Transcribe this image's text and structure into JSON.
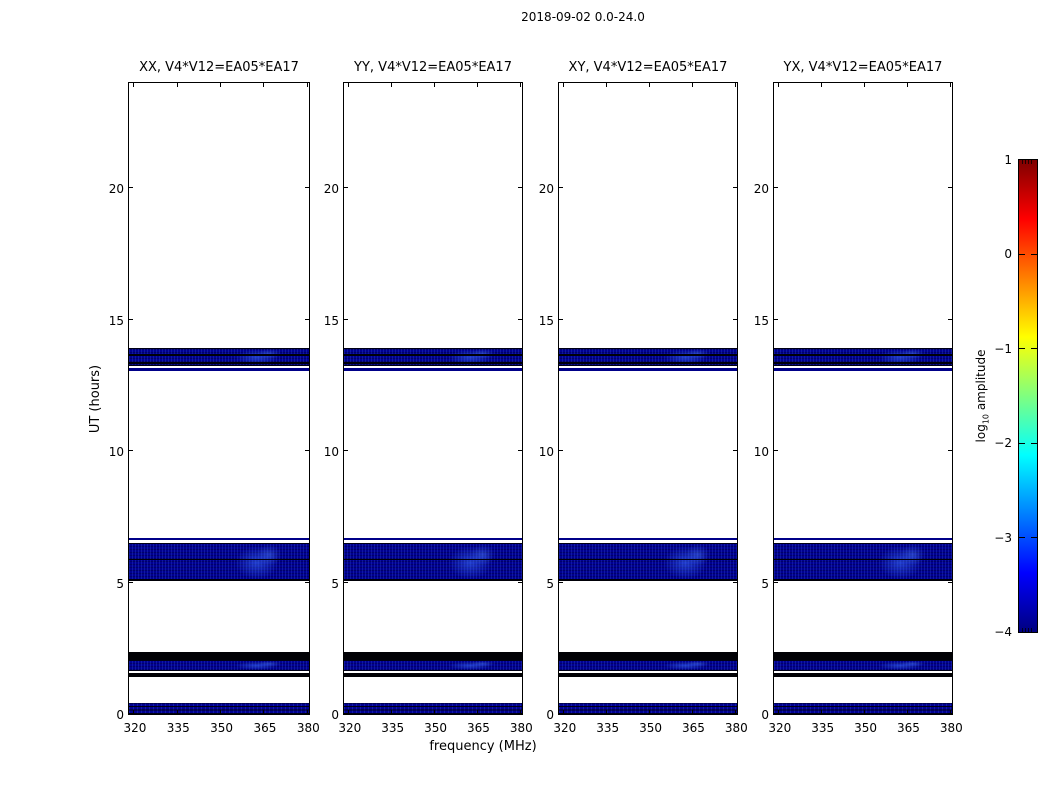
{
  "chart_data": {
    "type": "heatmap",
    "title": "2018-09-02 0.0-24.0",
    "xlabel": "frequency (MHz)",
    "ylabel": "UT (hours)",
    "xlim": [
      318.3,
      380.6
    ],
    "ylim": [
      0,
      24
    ],
    "x_ticks": [
      320,
      335,
      350,
      365,
      380
    ],
    "y_ticks": [
      0,
      5,
      10,
      15,
      20
    ],
    "grid": false,
    "panels": [
      {
        "title": "XX, V4*V12=EA05*EA17"
      },
      {
        "title": "YY, V4*V12=EA05*EA17"
      },
      {
        "title": "XY, V4*V12=EA05*EA17"
      },
      {
        "title": "YX, V4*V12=EA05*EA17"
      }
    ],
    "colorbar": {
      "label_prefix": "log",
      "label_sub": "10",
      "label_suffix": " amplitude",
      "colormap": "jet",
      "ticks": [
        1,
        0,
        -1,
        -2,
        -3,
        -4
      ],
      "range": [
        -4,
        1
      ]
    },
    "bands": [
      {
        "ut_range": [
          0.0,
          0.4
        ],
        "appearance": "navy-striped",
        "approx_log10_amp": -3.8
      },
      {
        "ut_range": [
          1.4,
          1.57
        ],
        "appearance": "black",
        "approx_log10_amp": -4.0
      },
      {
        "ut_range": [
          1.65,
          2.07
        ],
        "appearance": "navy",
        "approx_log10_amp": -3.8,
        "rfi_patch": true
      },
      {
        "ut_range": [
          2.07,
          2.35
        ],
        "appearance": "black",
        "approx_log10_amp": -4.0
      },
      {
        "ut_range": [
          5.04,
          6.5
        ],
        "appearance": "navy",
        "approx_log10_amp": -3.8,
        "rfi_patch": true
      },
      {
        "ut_range": [
          5.06,
          5.13
        ],
        "appearance": "black-line",
        "approx_log10_amp": -4.0
      },
      {
        "ut_range": [
          5.84,
          5.91
        ],
        "appearance": "black-line",
        "approx_log10_amp": -4.0
      },
      {
        "ut_range": [
          6.62,
          6.71
        ],
        "appearance": "navy-thin",
        "approx_log10_amp": -3.9
      },
      {
        "ut_range": [
          13.06,
          13.16
        ],
        "appearance": "navy-thin",
        "approx_log10_amp": -3.9
      },
      {
        "ut_range": [
          13.25,
          13.91
        ],
        "appearance": "navy",
        "approx_log10_amp": -3.8,
        "rfi_patch": true
      },
      {
        "ut_range": [
          13.33,
          13.4
        ],
        "appearance": "black-line",
        "approx_log10_amp": -4.0
      },
      {
        "ut_range": [
          13.63,
          13.7
        ],
        "appearance": "black-line",
        "approx_log10_amp": -4.0
      }
    ]
  },
  "colors": {
    "band_navy": "#000090",
    "band_black": "#010105",
    "frame": "#000000",
    "background": "#ffffff",
    "jet_stops": [
      "#00007f",
      "#0000ff",
      "#00ffff",
      "#ffff00",
      "#ff0000",
      "#7f0000"
    ]
  }
}
